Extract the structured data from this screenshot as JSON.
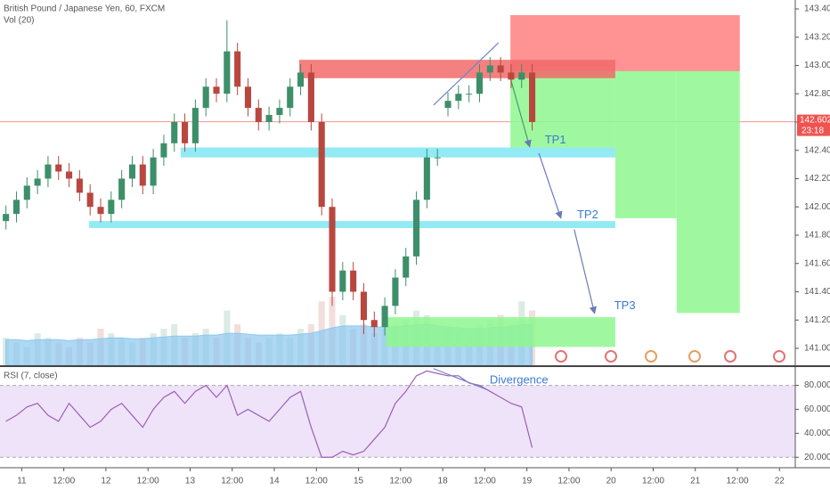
{
  "chart_data": [
    {
      "type": "candlestick",
      "title": "British Pound / Japanese Yen, 60, FXCM",
      "x": [
        -4.5,
        -1.5,
        1.5,
        4.5,
        7.5,
        10.5,
        13.5,
        16.5,
        19.5,
        22.5,
        25.5,
        28.5,
        31.5,
        34.5,
        37.5,
        40.5,
        43.5,
        46.5,
        49.5,
        52.5,
        55.5,
        58.5,
        61.5,
        64.5,
        67.5,
        70.5,
        73.5,
        76.5,
        79.5,
        82.5,
        85.5,
        88.5,
        91.5,
        94.5,
        97.5,
        100.5,
        103.5,
        106.5,
        109.5,
        112.5,
        115.5,
        118.5,
        121.5,
        124.5,
        127.5,
        130.5,
        133.5,
        136.5,
        139.5,
        142.5,
        145.5
      ],
      "open": [
        141.9,
        141.95,
        142.05,
        142.15,
        142.2,
        142.3,
        142.25,
        142.2,
        142.1,
        142.0,
        141.95,
        142.05,
        142.2,
        142.3,
        142.15,
        142.35,
        142.45,
        142.6,
        142.45,
        142.7,
        142.85,
        142.8,
        143.1,
        142.85,
        142.7,
        142.6,
        142.65,
        142.7,
        142.85,
        142.95,
        142.6,
        142.0,
        141.4,
        141.55,
        141.4,
        141.2,
        141.15,
        141.3,
        141.5,
        141.65,
        142.05,
        142.35,
        142.7,
        142.75,
        142.8,
        142.8,
        142.95,
        143.0,
        142.95,
        142.9,
        142.95
      ],
      "high": [
        142.01,
        142.11,
        142.21,
        142.26,
        142.36,
        142.36,
        142.31,
        142.26,
        142.16,
        142.06,
        142.11,
        142.26,
        142.36,
        142.36,
        142.41,
        142.51,
        142.66,
        142.66,
        142.76,
        142.91,
        142.91,
        143.32,
        143.16,
        142.91,
        142.76,
        142.71,
        142.76,
        142.91,
        143.01,
        143.01,
        142.66,
        142.06,
        141.61,
        141.61,
        141.46,
        141.26,
        141.36,
        141.56,
        141.71,
        142.11,
        142.41,
        142.41,
        142.81,
        142.86,
        142.86,
        143.01,
        143.06,
        143.06,
        143.01,
        143.01,
        143.01
      ],
      "low": [
        141.84,
        141.89,
        141.99,
        142.09,
        142.14,
        142.19,
        142.14,
        142.04,
        141.94,
        141.89,
        141.89,
        141.99,
        142.14,
        142.09,
        142.09,
        142.29,
        142.39,
        142.39,
        142.39,
        142.64,
        142.74,
        142.74,
        142.79,
        142.64,
        142.54,
        142.54,
        142.59,
        142.64,
        142.79,
        142.54,
        141.94,
        141.3,
        141.34,
        141.34,
        141.1,
        141.08,
        141.09,
        141.24,
        141.44,
        141.59,
        141.99,
        142.29,
        142.64,
        142.69,
        142.74,
        142.74,
        142.89,
        142.89,
        142.84,
        142.84,
        142.54
      ],
      "close": [
        141.95,
        142.05,
        142.15,
        142.2,
        142.3,
        142.25,
        142.2,
        142.1,
        142.0,
        141.95,
        142.05,
        142.2,
        142.3,
        142.15,
        142.35,
        142.45,
        142.6,
        142.45,
        142.7,
        142.85,
        142.8,
        143.1,
        142.85,
        142.7,
        142.6,
        142.65,
        142.7,
        142.85,
        142.95,
        142.6,
        142.0,
        141.4,
        141.55,
        141.4,
        141.2,
        141.15,
        141.3,
        141.5,
        141.65,
        142.05,
        142.35,
        142.35,
        142.75,
        142.8,
        142.8,
        142.95,
        143.0,
        142.95,
        142.9,
        142.95,
        142.6
      ],
      "up_color": "#3d8f6a",
      "down_color": "#b8473f",
      "xlim": [
        -6.19,
        220.5
      ],
      "xticks": [
        {
          "value": 0,
          "label": "11"
        },
        {
          "value": 12,
          "label": "12:00"
        },
        {
          "value": 24,
          "label": "12"
        },
        {
          "value": 36,
          "label": "12:00"
        },
        {
          "value": 48,
          "label": "13"
        },
        {
          "value": 60,
          "label": "12:00"
        },
        {
          "value": 72,
          "label": "14"
        },
        {
          "value": 84,
          "label": "12:00"
        },
        {
          "value": 96,
          "label": "15"
        },
        {
          "value": 108,
          "label": "12:00"
        },
        {
          "value": 120,
          "label": "18"
        },
        {
          "value": 132,
          "label": "12:00"
        },
        {
          "value": 144,
          "label": "19"
        },
        {
          "value": 156,
          "label": "12:00"
        },
        {
          "value": 168,
          "label": "20"
        },
        {
          "value": 180,
          "label": "12:00"
        },
        {
          "value": 192,
          "label": "21"
        },
        {
          "value": 204,
          "label": "12:00"
        },
        {
          "value": 216,
          "label": "22"
        }
      ],
      "ylim": [
        140.88,
        143.463
      ],
      "yticks": [
        {
          "value": 141.0,
          "label": "141.000"
        },
        {
          "value": 141.2,
          "label": "141.200"
        },
        {
          "value": 141.4,
          "label": "141.400"
        },
        {
          "value": 141.6,
          "label": "141.600"
        },
        {
          "value": 141.8,
          "label": "141.800"
        },
        {
          "value": 142.0,
          "label": "142.000"
        },
        {
          "value": 142.2,
          "label": "142.200"
        },
        {
          "value": 142.4,
          "label": "142.400"
        },
        {
          "value": 142.6,
          "label": "142.600"
        },
        {
          "value": 142.8,
          "label": "142.800"
        },
        {
          "value": 143.0,
          "label": "143.000"
        },
        {
          "value": 143.2,
          "label": "143.200"
        },
        {
          "value": 143.4,
          "label": "143.400"
        }
      ],
      "last_price": 142.602,
      "last_price_color": "#ef5350",
      "countdown": "23:18",
      "volume": {
        "label": "Vol (20)",
        "ylim": [
          0,
          400
        ],
        "ma_color": "#8cc8ef",
        "values": [
          30,
          25,
          20,
          35,
          30,
          25,
          20,
          30,
          25,
          40,
          35,
          30,
          25,
          30,
          35,
          40,
          45,
          30,
          35,
          40,
          30,
          60,
          45,
          30,
          25,
          30,
          35,
          30,
          40,
          45,
          70,
          75,
          55,
          40,
          45,
          35,
          40,
          45,
          50,
          60,
          55,
          20,
          40,
          35,
          30,
          45,
          50,
          55,
          45,
          70,
          60
        ],
        "ma": [
          28,
          28,
          27,
          28,
          28,
          28,
          27,
          28,
          28,
          29,
          30,
          30,
          29,
          29,
          30,
          31,
          32,
          32,
          32,
          33,
          33,
          35,
          35,
          34,
          33,
          33,
          33,
          33,
          34,
          35,
          38,
          41,
          43,
          43,
          43,
          42,
          42,
          42,
          43,
          44,
          45,
          43,
          42,
          41,
          40,
          40,
          41,
          42,
          42,
          44,
          45
        ]
      },
      "zones": [
        {
          "color": "#ff8080",
          "x": [
            139.3,
            204.7
          ],
          "y": [
            142.959,
            143.356
          ]
        },
        {
          "color": "#8ef78e",
          "x": [
            139.3,
            169.2
          ],
          "y": [
            142.42,
            142.96
          ]
        },
        {
          "color": "#8ef78e",
          "x": [
            169.2,
            186.7
          ],
          "y": [
            141.92,
            142.96
          ]
        },
        {
          "color": "#8ef78e",
          "x": [
            186.7,
            204.7
          ],
          "y": [
            141.25,
            142.96
          ]
        },
        {
          "color": "#8ef78e",
          "x": [
            103.9,
            169.2
          ],
          "y": [
            141.01,
            141.22
          ]
        },
        {
          "color": "#f26a6a",
          "x": [
            79.1,
            169.2
          ],
          "y": [
            142.91,
            143.04
          ]
        },
        {
          "color": "#7fe6f2",
          "x": [
            45.3,
            169.2
          ],
          "y": [
            142.35,
            142.42
          ]
        },
        {
          "color": "#7fe6f2",
          "x": [
            19.2,
            169.2
          ],
          "y": [
            141.85,
            141.9
          ]
        }
      ],
      "lines": [
        {
          "color": "#6a86c8",
          "arrow": false,
          "x": [
            117.4,
            135.9
          ],
          "y": [
            142.72,
            143.16
          ]
        },
        {
          "color": "#4a9a6a",
          "arrow": true,
          "x": [
            139.3,
            144.8
          ],
          "y": [
            142.91,
            142.424
          ]
        },
        {
          "color": "#6a7ab8",
          "arrow": true,
          "x": [
            147.4,
            153.7
          ],
          "y": [
            142.38,
            141.92
          ]
        },
        {
          "color": "#6a7ab8",
          "arrow": true,
          "x": [
            157.5,
            163.3
          ],
          "y": [
            141.84,
            141.246
          ]
        }
      ],
      "annotations": [
        {
          "text": "TP1",
          "x": 149.1,
          "y": 142.47
        },
        {
          "text": "TP2",
          "x": 158.3,
          "y": 141.94
        },
        {
          "text": "TP3",
          "x": 168.9,
          "y": 141.3
        }
      ]
    },
    {
      "type": "line",
      "title": "RSI (7, close)",
      "x": [
        -4.5,
        -1.5,
        1.5,
        4.5,
        7.5,
        10.5,
        13.5,
        16.5,
        19.5,
        22.5,
        25.5,
        28.5,
        31.5,
        34.5,
        37.5,
        40.5,
        43.5,
        46.5,
        49.5,
        52.5,
        55.5,
        58.5,
        61.5,
        64.5,
        67.5,
        70.5,
        73.5,
        76.5,
        79.5,
        82.5,
        85.5,
        88.5,
        91.5,
        94.5,
        97.5,
        100.5,
        103.5,
        106.5,
        109.5,
        112.5,
        115.5,
        118.5,
        121.5,
        124.5,
        127.5,
        130.5,
        133.5,
        136.5,
        139.5,
        142.5,
        145.5
      ],
      "values": [
        50,
        55,
        62,
        65,
        55,
        50,
        65,
        55,
        45,
        50,
        60,
        65,
        55,
        45,
        60,
        70,
        75,
        65,
        75,
        80,
        70,
        80,
        55,
        60,
        55,
        50,
        60,
        70,
        75,
        45,
        20,
        20,
        25,
        22,
        25,
        35,
        45,
        65,
        75,
        88,
        92,
        90,
        88,
        88,
        82,
        80,
        75,
        70,
        65,
        62,
        28
      ],
      "color": "#9c5fb5",
      "xlim": [
        -6.19,
        220.5
      ],
      "ylim": [
        12,
        95.3
      ],
      "yticks": [
        {
          "value": 20,
          "label": "20.0000"
        },
        {
          "value": 40,
          "label": "40.0000"
        },
        {
          "value": 60,
          "label": "60.0000"
        },
        {
          "value": 80,
          "label": "80.0000"
        }
      ],
      "band": [
        20,
        80
      ],
      "band_color": "#efe3fa",
      "lines": [
        {
          "color": "#6a86c8",
          "arrow": false,
          "x": [
            117.4,
            133.0
          ],
          "y": [
            94,
            76
          ]
        }
      ],
      "annotations": [
        {
          "text": "Divergence",
          "x": 133.4,
          "y": 84
        }
      ]
    }
  ]
}
